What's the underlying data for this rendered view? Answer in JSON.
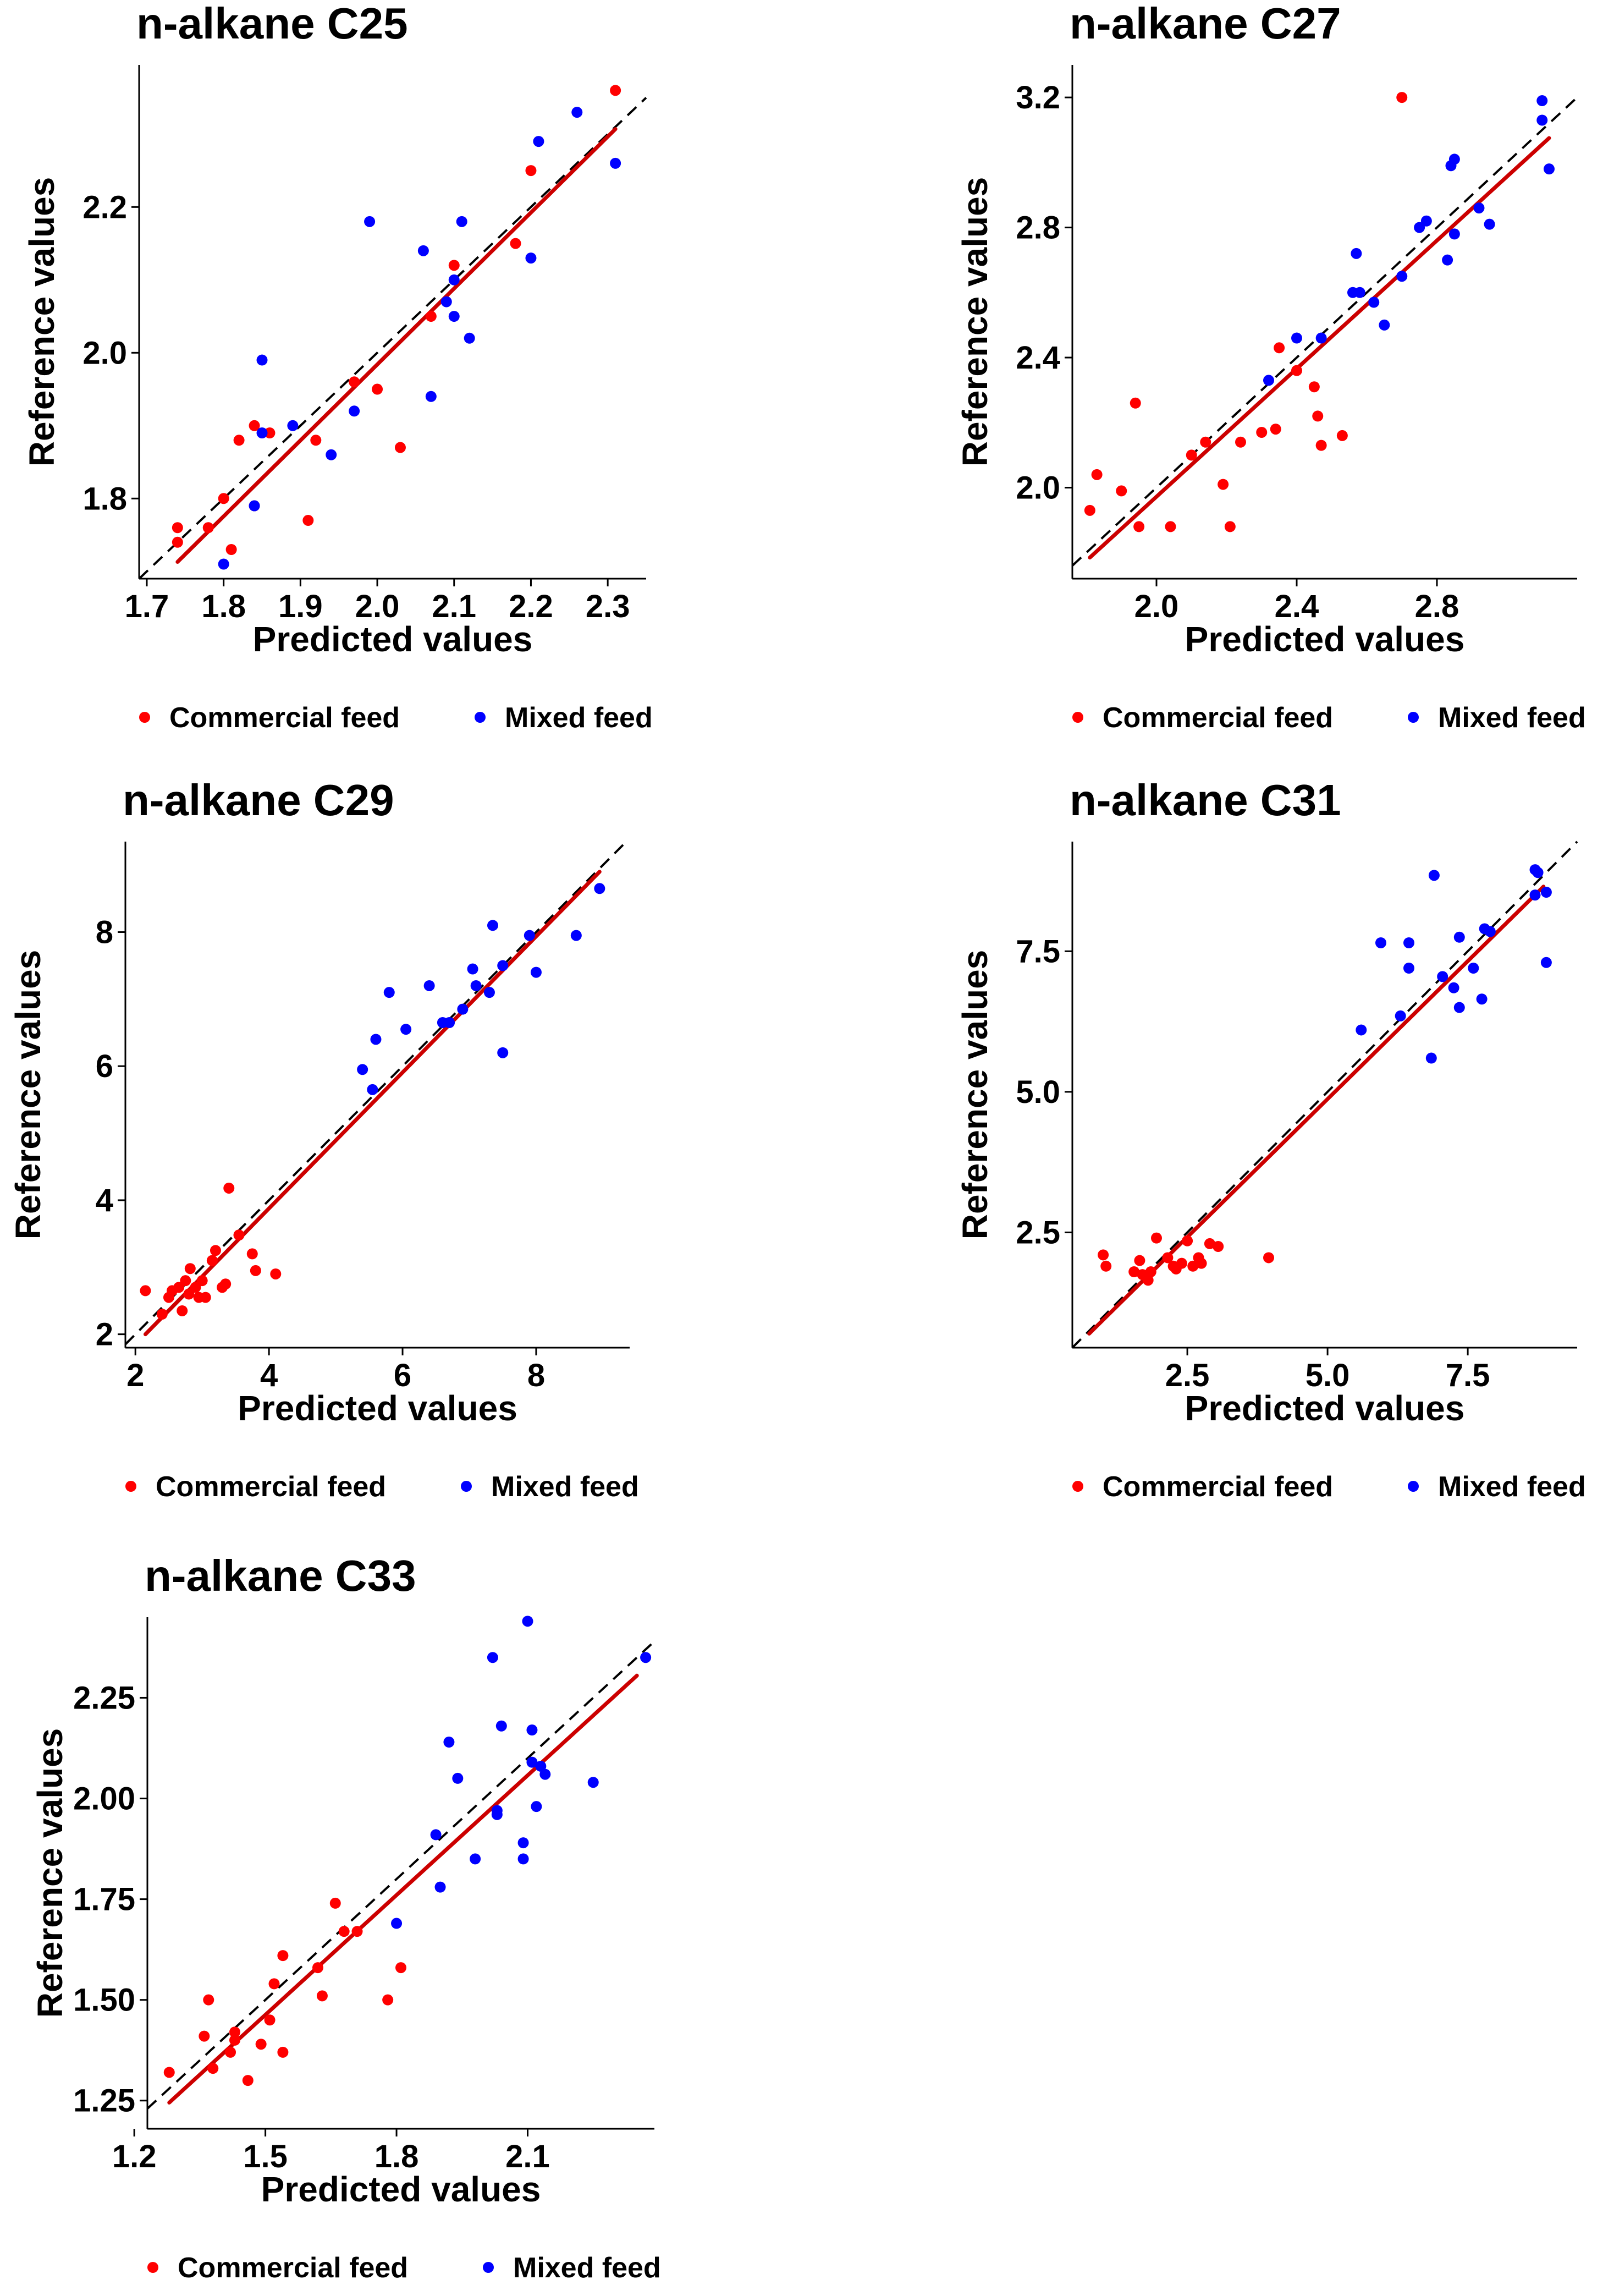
{
  "colors": {
    "commercial": "#FF0000",
    "mixed": "#0000FF",
    "regression": "#CC0000",
    "identity": "#000000"
  },
  "chart_data": [
    {
      "type": "scatter",
      "title": "n-alkane C25",
      "xlabel": "Predicted values",
      "ylabel": "Reference values",
      "xlim": [
        1.69,
        2.35
      ],
      "ylim": [
        1.69,
        2.395
      ],
      "xticks": [
        1.7,
        1.8,
        1.9,
        2.0,
        2.1,
        2.2,
        2.3
      ],
      "yticks": [
        1.8,
        2.0,
        2.2
      ],
      "tick_decimals": 1,
      "legend_position": "bottom",
      "legend": [
        "Commercial feed",
        "Mixed feed"
      ],
      "series": [
        {
          "name": "Commercial feed",
          "points": [
            [
              1.74,
              1.76
            ],
            [
              1.74,
              1.74
            ],
            [
              1.78,
              1.76
            ],
            [
              1.8,
              1.8
            ],
            [
              1.81,
              1.73
            ],
            [
              1.82,
              1.88
            ],
            [
              1.84,
              1.79
            ],
            [
              1.84,
              1.9
            ],
            [
              1.86,
              1.89
            ],
            [
              1.91,
              1.77
            ],
            [
              1.92,
              1.88
            ],
            [
              1.97,
              1.96
            ],
            [
              2.0,
              1.95
            ],
            [
              2.03,
              1.87
            ],
            [
              2.07,
              2.05
            ],
            [
              2.1,
              2.12
            ],
            [
              2.18,
              2.15
            ],
            [
              2.2,
              2.25
            ],
            [
              2.31,
              2.36
            ]
          ]
        },
        {
          "name": "Mixed feed",
          "points": [
            [
              1.8,
              1.71
            ],
            [
              1.84,
              1.79
            ],
            [
              1.85,
              1.99
            ],
            [
              1.85,
              1.89
            ],
            [
              1.89,
              1.9
            ],
            [
              1.94,
              1.86
            ],
            [
              1.97,
              1.92
            ],
            [
              1.99,
              2.18
            ],
            [
              2.06,
              2.14
            ],
            [
              2.07,
              1.94
            ],
            [
              2.09,
              2.07
            ],
            [
              2.1,
              2.05
            ],
            [
              2.1,
              2.1
            ],
            [
              2.11,
              2.18
            ],
            [
              2.12,
              2.02
            ],
            [
              2.2,
              2.13
            ],
            [
              2.21,
              2.29
            ],
            [
              2.26,
              2.33
            ],
            [
              2.31,
              2.26
            ]
          ]
        }
      ],
      "regression": {
        "x": [
          1.74,
          2.31
        ],
        "y": [
          1.713,
          2.307
        ]
      }
    },
    {
      "type": "scatter",
      "title": "n-alkane C27",
      "xlabel": "Predicted values",
      "ylabel": "Reference values",
      "xlim": [
        1.76,
        3.2
      ],
      "ylim": [
        1.72,
        3.3
      ],
      "xticks": [
        2.0,
        2.4,
        2.8
      ],
      "yticks": [
        2.0,
        2.4,
        2.8,
        3.2
      ],
      "tick_decimals": 1,
      "legend_position": "bottom",
      "legend": [
        "Commercial feed",
        "Mixed feed"
      ],
      "series": [
        {
          "name": "Commercial feed",
          "points": [
            [
              1.81,
              1.93
            ],
            [
              1.83,
              2.04
            ],
            [
              1.9,
              1.99
            ],
            [
              1.94,
              2.26
            ],
            [
              1.95,
              1.88
            ],
            [
              2.04,
              1.88
            ],
            [
              2.1,
              2.1
            ],
            [
              2.14,
              2.14
            ],
            [
              2.19,
              2.01
            ],
            [
              2.21,
              1.88
            ],
            [
              2.24,
              2.14
            ],
            [
              2.3,
              2.17
            ],
            [
              2.34,
              2.18
            ],
            [
              2.35,
              2.43
            ],
            [
              2.4,
              2.36
            ],
            [
              2.45,
              2.31
            ],
            [
              2.46,
              2.22
            ],
            [
              2.47,
              2.13
            ],
            [
              2.53,
              2.16
            ],
            [
              2.7,
              3.2
            ]
          ]
        },
        {
          "name": "Mixed feed",
          "points": [
            [
              2.32,
              2.33
            ],
            [
              2.4,
              2.46
            ],
            [
              2.47,
              2.46
            ],
            [
              2.56,
              2.6
            ],
            [
              2.57,
              2.72
            ],
            [
              2.58,
              2.6
            ],
            [
              2.62,
              2.57
            ],
            [
              2.65,
              2.5
            ],
            [
              2.7,
              2.65
            ],
            [
              2.75,
              2.8
            ],
            [
              2.77,
              2.82
            ],
            [
              2.83,
              2.7
            ],
            [
              2.84,
              2.99
            ],
            [
              2.85,
              3.01
            ],
            [
              2.85,
              2.78
            ],
            [
              2.92,
              2.86
            ],
            [
              2.95,
              2.81
            ],
            [
              3.1,
              3.19
            ],
            [
              3.1,
              3.13
            ],
            [
              3.12,
              2.98
            ]
          ]
        }
      ],
      "regression": {
        "x": [
          1.81,
          3.12
        ],
        "y": [
          1.785,
          3.075
        ]
      }
    },
    {
      "type": "scatter",
      "title": "n-alkane C29",
      "xlabel": "Predicted values",
      "ylabel": "Reference values",
      "xlim": [
        1.85,
        9.4
      ],
      "ylim": [
        1.8,
        9.35
      ],
      "xticks": [
        2,
        4,
        6,
        8
      ],
      "yticks": [
        2,
        4,
        6,
        8
      ],
      "tick_decimals": 0,
      "legend_position": "bottom",
      "legend": [
        "Commercial feed",
        "Mixed feed"
      ],
      "series": [
        {
          "name": "Commercial feed",
          "points": [
            [
              2.15,
              2.65
            ],
            [
              2.4,
              2.3
            ],
            [
              2.5,
              2.55
            ],
            [
              2.55,
              2.65
            ],
            [
              2.65,
              2.7
            ],
            [
              2.7,
              2.35
            ],
            [
              2.75,
              2.8
            ],
            [
              2.8,
              2.6
            ],
            [
              2.82,
              2.98
            ],
            [
              2.9,
              2.7
            ],
            [
              2.95,
              2.55
            ],
            [
              3.0,
              2.8
            ],
            [
              3.05,
              2.55
            ],
            [
              3.15,
              3.1
            ],
            [
              3.2,
              3.25
            ],
            [
              3.3,
              2.7
            ],
            [
              3.35,
              2.75
            ],
            [
              3.4,
              4.18
            ],
            [
              3.55,
              3.48
            ],
            [
              3.75,
              3.2
            ],
            [
              3.8,
              2.95
            ],
            [
              4.1,
              2.9
            ]
          ]
        },
        {
          "name": "Mixed feed",
          "points": [
            [
              5.4,
              5.95
            ],
            [
              5.55,
              5.65
            ],
            [
              5.6,
              6.4
            ],
            [
              5.8,
              7.1
            ],
            [
              6.05,
              6.55
            ],
            [
              6.4,
              7.2
            ],
            [
              6.6,
              6.65
            ],
            [
              6.7,
              6.65
            ],
            [
              6.9,
              6.85
            ],
            [
              7.05,
              7.45
            ],
            [
              7.1,
              7.2
            ],
            [
              7.3,
              7.1
            ],
            [
              7.35,
              8.1
            ],
            [
              7.5,
              7.5
            ],
            [
              7.5,
              6.2
            ],
            [
              7.9,
              7.95
            ],
            [
              8.0,
              7.4
            ],
            [
              8.6,
              7.95
            ],
            [
              8.95,
              8.65
            ]
          ]
        }
      ],
      "regression": {
        "x": [
          2.15,
          8.95
        ],
        "y": [
          2.0,
          8.9
        ]
      }
    },
    {
      "type": "scatter",
      "title": "n-alkane C31",
      "xlabel": "Predicted values",
      "ylabel": "Reference values",
      "xlim": [
        0.45,
        9.45
      ],
      "ylim": [
        0.45,
        9.45
      ],
      "xticks": [
        2.5,
        5.0,
        7.5
      ],
      "yticks": [
        2.5,
        5.0,
        7.5
      ],
      "tick_decimals": 1,
      "legend_position": "bottom",
      "legend": [
        "Commercial feed",
        "Mixed feed"
      ],
      "series": [
        {
          "name": "Commercial feed",
          "points": [
            [
              1.0,
              2.1
            ],
            [
              1.05,
              1.9
            ],
            [
              1.55,
              1.8
            ],
            [
              1.65,
              2.0
            ],
            [
              1.7,
              1.75
            ],
            [
              1.8,
              1.65
            ],
            [
              1.85,
              1.8
            ],
            [
              1.95,
              2.4
            ],
            [
              2.15,
              2.05
            ],
            [
              2.25,
              1.9
            ],
            [
              2.3,
              1.85
            ],
            [
              2.4,
              1.95
            ],
            [
              2.5,
              2.35
            ],
            [
              2.6,
              1.9
            ],
            [
              2.7,
              2.05
            ],
            [
              2.75,
              1.95
            ],
            [
              2.9,
              2.3
            ],
            [
              3.05,
              2.25
            ],
            [
              3.95,
              2.05
            ]
          ]
        },
        {
          "name": "Mixed feed",
          "points": [
            [
              5.6,
              6.1
            ],
            [
              5.95,
              7.65
            ],
            [
              6.3,
              6.35
            ],
            [
              6.45,
              7.65
            ],
            [
              6.45,
              7.2
            ],
            [
              6.85,
              5.6
            ],
            [
              6.9,
              8.85
            ],
            [
              7.05,
              7.05
            ],
            [
              7.25,
              6.85
            ],
            [
              7.35,
              6.5
            ],
            [
              7.35,
              7.75
            ],
            [
              7.6,
              7.2
            ],
            [
              7.75,
              6.65
            ],
            [
              7.8,
              7.9
            ],
            [
              7.9,
              7.85
            ],
            [
              8.7,
              8.95
            ],
            [
              8.7,
              8.5
            ],
            [
              8.75,
              8.9
            ],
            [
              8.9,
              8.55
            ],
            [
              8.9,
              7.3
            ]
          ]
        }
      ],
      "regression": {
        "x": [
          0.75,
          8.85
        ],
        "y": [
          0.7,
          8.65
        ]
      }
    },
    {
      "type": "scatter",
      "title": "n-alkane C33",
      "xlabel": "Predicted values",
      "ylabel": "Reference values",
      "xlim": [
        1.23,
        2.39
      ],
      "ylim": [
        1.18,
        2.45
      ],
      "xticks": [
        1.2,
        1.5,
        1.8,
        2.1
      ],
      "yticks": [
        1.25,
        1.5,
        1.75,
        2.0,
        2.25
      ],
      "tick_decimals_x": 1,
      "tick_decimals_y": 2,
      "legend_position": "bottom",
      "legend": [
        "Commercial feed",
        "Mixed feed"
      ],
      "series": [
        {
          "name": "Commercial feed",
          "points": [
            [
              1.28,
              1.32
            ],
            [
              1.36,
              1.41
            ],
            [
              1.37,
              1.5
            ],
            [
              1.38,
              1.33
            ],
            [
              1.42,
              1.37
            ],
            [
              1.43,
              1.4
            ],
            [
              1.43,
              1.42
            ],
            [
              1.46,
              1.3
            ],
            [
              1.49,
              1.39
            ],
            [
              1.51,
              1.45
            ],
            [
              1.52,
              1.54
            ],
            [
              1.54,
              1.37
            ],
            [
              1.54,
              1.61
            ],
            [
              1.62,
              1.58
            ],
            [
              1.63,
              1.51
            ],
            [
              1.66,
              1.74
            ],
            [
              1.68,
              1.67
            ],
            [
              1.71,
              1.67
            ],
            [
              1.78,
              1.5
            ],
            [
              1.81,
              1.58
            ]
          ]
        },
        {
          "name": "Mixed feed",
          "points": [
            [
              1.8,
              1.69
            ],
            [
              1.89,
              1.91
            ],
            [
              1.9,
              1.78
            ],
            [
              1.92,
              2.14
            ],
            [
              1.94,
              2.05
            ],
            [
              1.98,
              1.85
            ],
            [
              2.02,
              2.35
            ],
            [
              2.03,
              1.97
            ],
            [
              2.03,
              1.96
            ],
            [
              2.04,
              2.18
            ],
            [
              2.09,
              1.85
            ],
            [
              2.09,
              1.89
            ],
            [
              2.1,
              2.44
            ],
            [
              2.11,
              2.17
            ],
            [
              2.11,
              2.09
            ],
            [
              2.12,
              1.98
            ],
            [
              2.13,
              2.08
            ],
            [
              2.14,
              2.06
            ],
            [
              2.25,
              2.04
            ],
            [
              2.37,
              2.35
            ]
          ]
        }
      ],
      "regression": {
        "x": [
          1.28,
          2.35
        ],
        "y": [
          1.245,
          2.305
        ]
      }
    }
  ]
}
